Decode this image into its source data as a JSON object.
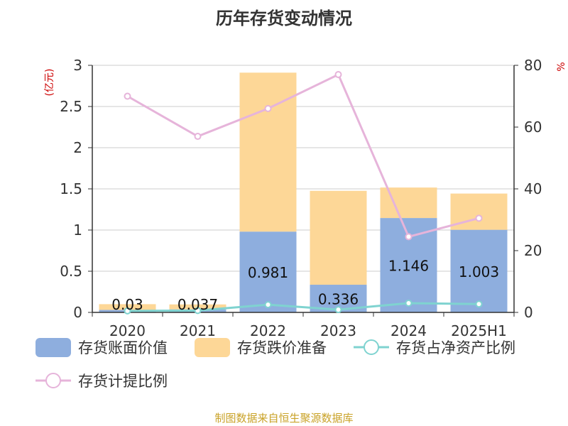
{
  "title": "历年存货变动情况",
  "footer": "制图数据来自恒生聚源数据库",
  "colors": {
    "book_value": "#8eaede",
    "impairment": "#fdd797",
    "net_asset_ratio": "#7fd3d0",
    "provision_ratio": "#e6b4da",
    "axis": "#333333",
    "grid": "#cccccc"
  },
  "chart_data": {
    "type": "bar",
    "stacked": true,
    "categories": [
      "2020",
      "2021",
      "2022",
      "2023",
      "2024",
      "2025H1"
    ],
    "left_axis": {
      "unit": "(亿元)",
      "ylim": [
        0,
        3
      ],
      "ticks": [
        0,
        0.5,
        1,
        1.5,
        2,
        2.5,
        3
      ],
      "tick_labels": [
        "0",
        "0.5",
        "1",
        "1.5",
        "2",
        "2.5",
        "3"
      ]
    },
    "right_axis": {
      "unit": "%",
      "ylim": [
        0,
        80
      ],
      "ticks": [
        0,
        20,
        40,
        60,
        80
      ],
      "tick_labels": [
        "0",
        "20",
        "40",
        "60",
        "80"
      ]
    },
    "series": [
      {
        "name": "存货账面价值",
        "kind": "bar",
        "axis": "left",
        "color": "#8eaede",
        "values": [
          0.03,
          0.037,
          0.981,
          0.336,
          1.146,
          1.003
        ],
        "labels": [
          "0.03",
          "0.037",
          "0.981",
          "0.336",
          "1.146",
          "1.003"
        ]
      },
      {
        "name": "存货跌价准备",
        "kind": "bar",
        "axis": "left",
        "color": "#fdd797",
        "values": [
          0.07,
          0.06,
          1.93,
          1.14,
          0.37,
          0.44
        ]
      },
      {
        "name": "存货占净资产比例",
        "kind": "line",
        "axis": "right",
        "color": "#7fd3d0",
        "values": [
          0.5,
          0.6,
          2.5,
          0.9,
          3.0,
          2.7
        ]
      },
      {
        "name": "存货计提比例",
        "kind": "line",
        "axis": "right",
        "color": "#e6b4da",
        "values": [
          70,
          57,
          66,
          77,
          24.5,
          30.5
        ]
      }
    ],
    "grid": true,
    "legend_position": "bottom"
  }
}
